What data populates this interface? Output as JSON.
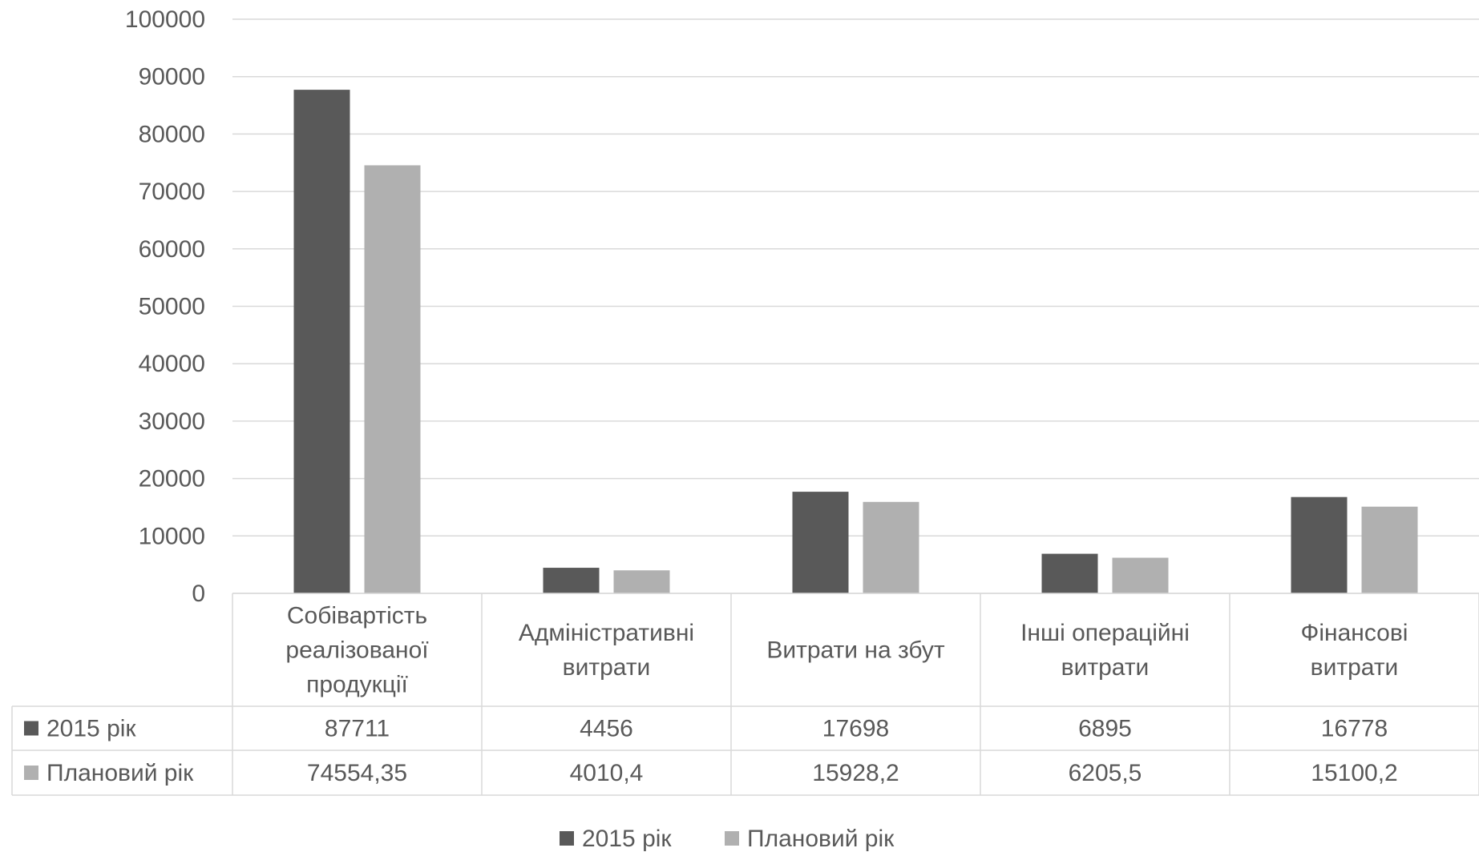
{
  "chart_data": {
    "type": "bar",
    "categories": [
      [
        "Собівартість",
        "реалізованої",
        "продукції"
      ],
      [
        "Адміністративні",
        "витрати"
      ],
      [
        "Витрати на збут"
      ],
      [
        "Інші операційні",
        "витрати"
      ],
      [
        "Фінансові",
        "витрати"
      ]
    ],
    "series": [
      {
        "name": "2015 рік",
        "color": "#595959",
        "values": [
          87711,
          4456,
          17698,
          6895,
          16778
        ],
        "value_labels": [
          "87711",
          "4456",
          "17698",
          "6895",
          "16778"
        ]
      },
      {
        "name": "Плановий рік",
        "color": "#b0b0b0",
        "values": [
          74554.35,
          4010.4,
          15928.2,
          6205.5,
          15100.2
        ],
        "value_labels": [
          "74554,35",
          "4010,4",
          "15928,2",
          "6205,5",
          "15100,2"
        ]
      }
    ],
    "ylim": [
      0,
      100000
    ],
    "yticks": [
      0,
      10000,
      20000,
      30000,
      40000,
      50000,
      60000,
      70000,
      80000,
      90000,
      100000
    ],
    "grid": true,
    "data_table": true,
    "legend_position": "bottom"
  }
}
